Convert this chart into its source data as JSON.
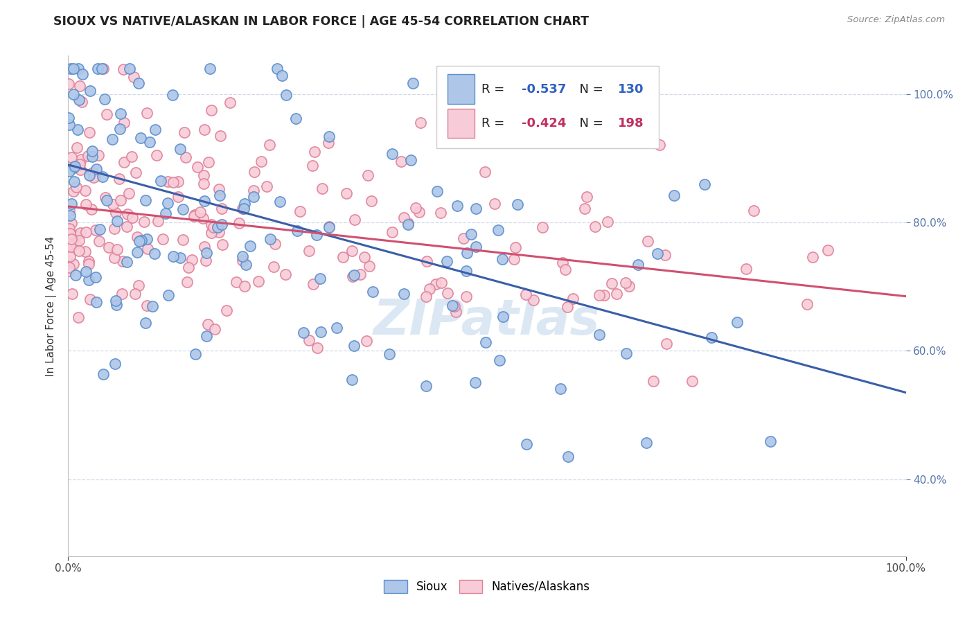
{
  "title": "SIOUX VS NATIVE/ALASKAN IN LABOR FORCE | AGE 45-54 CORRELATION CHART",
  "source_text": "Source: ZipAtlas.com",
  "ylabel": "In Labor Force | Age 45-54",
  "xlim": [
    0.0,
    1.0
  ],
  "ylim": [
    0.28,
    1.06
  ],
  "blue_R": -0.537,
  "blue_N": 130,
  "pink_R": -0.424,
  "pink_N": 198,
  "blue_scatter_color": "#aec6e8",
  "blue_edge_color": "#5b8fcc",
  "pink_scatter_color": "#f7ccd8",
  "pink_edge_color": "#e08098",
  "blue_line_color": "#3a5fa8",
  "pink_line_color": "#d05070",
  "blue_line_y0": 0.89,
  "blue_line_y1": 0.535,
  "pink_line_y0": 0.825,
  "pink_line_y1": 0.685,
  "watermark": "ZIPatlas",
  "watermark_color": "#c5d8ee",
  "legend_blue_color": "#3060c0",
  "legend_pink_color": "#c03060",
  "background_color": "#ffffff",
  "grid_color": "#d0d8e8",
  "grid_style": "--",
  "yticks": [
    0.4,
    0.6,
    0.8,
    1.0
  ],
  "xticks": [
    0.0,
    1.0
  ]
}
